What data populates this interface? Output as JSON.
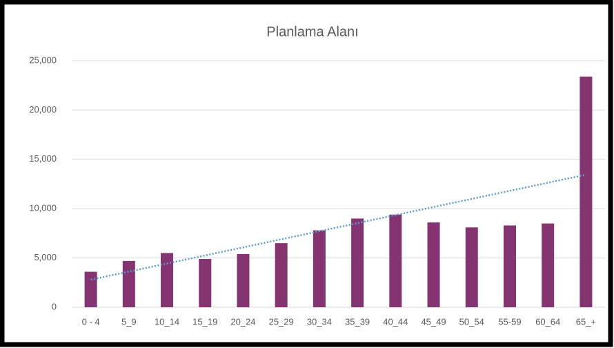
{
  "chart_data": {
    "type": "bar",
    "title": "Planlama Alanı",
    "categories": [
      "0 - 4",
      "5_9",
      "10_14",
      "15_19",
      "20_24",
      "25_29",
      "30_34",
      "35_39",
      "40_44",
      "45_49",
      "50_54",
      "55-59",
      "60_64",
      "65_+"
    ],
    "values": [
      3600,
      4700,
      5500,
      4900,
      5400,
      6500,
      7800,
      9000,
      9400,
      8600,
      8100,
      8300,
      8500,
      23400
    ],
    "color": "#833471",
    "ylim": [
      0,
      25000
    ],
    "yticks": [
      0,
      {
        "value": 5000,
        "label": "5,000"
      },
      {
        "value": 10000,
        "label": "10,000"
      },
      {
        "value": 15000,
        "label": "15,000"
      },
      {
        "value": 20000,
        "label": "20,000"
      },
      {
        "value": 25000,
        "label": "25,000"
      }
    ],
    "grid": true,
    "trendline": {
      "kind": "linear",
      "color": "#5b9bd5"
    }
  }
}
